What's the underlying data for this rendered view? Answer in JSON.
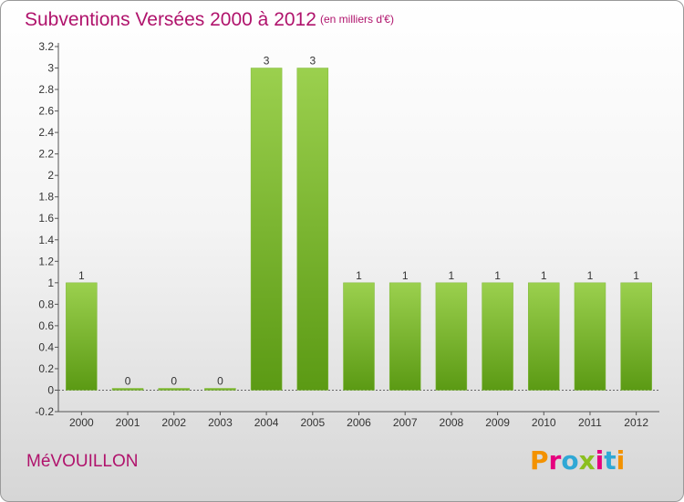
{
  "header": {
    "title": "Subventions Versées 2000 à 2012",
    "unit": "(en milliers d'€)"
  },
  "footer": {
    "commune": "MéVOUILLON",
    "logo": "Proxiti"
  },
  "colors": {
    "title": "#b0136c",
    "bar_light": "#9bd04e",
    "bar_dark": "#5b9a14",
    "logo_letters": [
      "#f39200",
      "#e6007e",
      "#2fa8d5",
      "#8bbf1f",
      "#e6007e",
      "#2fa8d5",
      "#f39200"
    ]
  },
  "chart_data": {
    "type": "bar",
    "categories": [
      "2000",
      "2001",
      "2002",
      "2003",
      "2004",
      "2005",
      "2006",
      "2007",
      "2008",
      "2009",
      "2010",
      "2011",
      "2012"
    ],
    "values": [
      1,
      0,
      0,
      0,
      3,
      3,
      1,
      1,
      1,
      1,
      1,
      1,
      1
    ],
    "data_labels": [
      "1",
      "0",
      "0",
      "0",
      "3",
      "3",
      "1",
      "1",
      "1",
      "1",
      "1",
      "1",
      "1"
    ],
    "y_ticks": [
      "-0.2",
      "0",
      "0.2",
      "0.4",
      "0.6",
      "0.8",
      "1",
      "1.2",
      "1.4",
      "1.6",
      "1.8",
      "2",
      "2.2",
      "2.4",
      "2.6",
      "2.8",
      "3",
      "3.2"
    ],
    "ylim": [
      -0.2,
      3.2
    ],
    "grid": false,
    "title": "Subventions Versées 2000 à 2012",
    "xlabel": "",
    "ylabel": ""
  }
}
